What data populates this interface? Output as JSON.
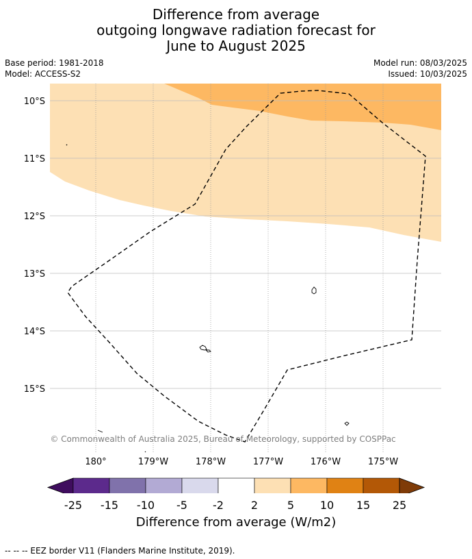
{
  "title_lines": [
    "Difference from average",
    "outgoing longwave radiation forecast for",
    "June to August 2025"
  ],
  "meta": {
    "base_period": "Base period: 1981-2018",
    "model": "Model: ACCESS-S2",
    "model_run": "Model run: 08/03/2025",
    "issued": "Issued: 10/03/2025"
  },
  "map": {
    "lat_labels": [
      "10°S",
      "11°S",
      "12°S",
      "13°S",
      "14°S",
      "15°S"
    ],
    "lon_labels": [
      "180°",
      "179°W",
      "178°W",
      "177°W",
      "176°W",
      "175°W"
    ],
    "copyright": "© Commonwealth of Australia 2025, Bureau of Meteorology, supported by COSPPac",
    "colors": {
      "anomaly_2_to_5": "#fde0b4",
      "anomaly_5_to_10": "#fdb862",
      "eez_border": "#000000"
    }
  },
  "colorbar": {
    "tick_labels": [
      "-25",
      "-15",
      "-10",
      "-5",
      "-2",
      "2",
      "5",
      "10",
      "15",
      "25"
    ],
    "colors": [
      "#3f0d5e",
      "#5c2a8c",
      "#8072ab",
      "#b2aad4",
      "#d9d9ec",
      "#ffffff",
      "#fde0b4",
      "#fdb862",
      "#e08214",
      "#b35806",
      "#7f3b08"
    ],
    "title": "Difference from average (W/m2)"
  },
  "footer": "--  --  -- EEZ border V11 (Flanders Marine Institute, 2019)."
}
